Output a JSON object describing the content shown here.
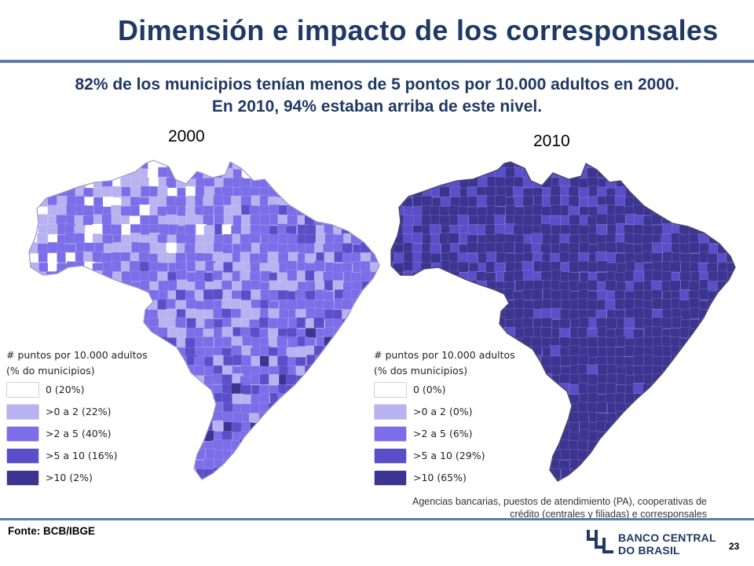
{
  "header": {
    "title": "Dimensión e impacto de los corresponsales",
    "subtitle_line1": "82% de los municipios tenían menos de 5 pontos por 10.000 adultos en 2000.",
    "subtitle_line2": "En 2010, 94% estaban arriba de este nivel."
  },
  "maps": [
    {
      "year": "2000",
      "legend_title_line1": "# puntos por 10.000 adultos",
      "legend_title_line2": "(% do municipios)",
      "legend": [
        {
          "label": "0 (20%)",
          "color": "#ffffff",
          "share": 20
        },
        {
          "label": ">0 a 2 (22%)",
          "color": "#b8b3f0",
          "share": 22
        },
        {
          "label": ">2 a 5 (40%)",
          "color": "#7b6ee8",
          "share": 40
        },
        {
          "label": ">5 a 10 (16%)",
          "color": "#5a4fc9",
          "share": 16
        },
        {
          "label": ">10 (2%)",
          "color": "#3c3491",
          "share": 2
        }
      ]
    },
    {
      "year": "2010",
      "legend_title_line1": "# puntos por 10.000 adultos",
      "legend_title_line2": "(% dos municipios)",
      "legend": [
        {
          "label": "0 (0%)",
          "color": "#ffffff",
          "share": 0
        },
        {
          "label": ">0 a 2 (0%)",
          "color": "#b8b3f0",
          "share": 0
        },
        {
          "label": ">2 a 5 (6%)",
          "color": "#7b6ee8",
          "share": 6
        },
        {
          "label": ">5 a 10 (29%)",
          "color": "#5a4fc9",
          "share": 29
        },
        {
          "label": ">10 (65%)",
          "color": "#3c3491",
          "share": 65
        }
      ]
    }
  ],
  "note_line1": "Agencias bancarias, puestos de atendimiento (PA), cooperativas de",
  "note_line2": "crédito (centrales y filiadas) e corresponsales",
  "source": "Fonte: BCB/IBGE",
  "logo": {
    "line1": "BANCO CENTRAL",
    "line2": "DO BRASIL",
    "icon": "bcb-logo-icon",
    "color": "#1f3864"
  },
  "page_number": "23"
}
